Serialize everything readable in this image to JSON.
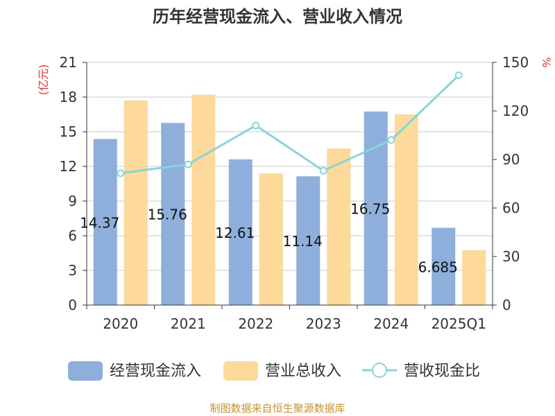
{
  "chart_data": {
    "type": "bar",
    "title": "历年经营现金流入、营业收入情况",
    "categories": [
      "2020",
      "2021",
      "2022",
      "2023",
      "2024",
      "2025Q1"
    ],
    "series": [
      {
        "name": "经营现金流入",
        "type": "bar",
        "axis": "left",
        "color": "#8eaedb",
        "values": [
          14.37,
          15.76,
          12.61,
          11.14,
          16.75,
          6.685
        ],
        "labels": [
          "14.37",
          "15.76",
          "12.61",
          "11.14",
          "16.75",
          "6.685"
        ]
      },
      {
        "name": "营业总收入",
        "type": "bar",
        "axis": "left",
        "color": "#fdd99a",
        "values": [
          17.7,
          18.2,
          11.4,
          13.55,
          16.5,
          4.75
        ]
      },
      {
        "name": "营收现金比",
        "type": "line",
        "axis": "right",
        "color": "#88d4d8",
        "values": [
          81.5,
          87,
          111,
          83,
          102,
          142
        ]
      }
    ],
    "y_left": {
      "label": "(亿元)",
      "min": 0,
      "max": 21,
      "ticks": [
        0,
        3,
        6,
        9,
        12,
        15,
        18,
        21
      ]
    },
    "y_right": {
      "label": "%",
      "min": 0,
      "max": 150,
      "ticks": [
        0,
        30,
        60,
        90,
        120,
        150
      ]
    },
    "grid": true,
    "legend_position": "bottom"
  },
  "source_text": "制图数据来自恒生聚源数据库"
}
